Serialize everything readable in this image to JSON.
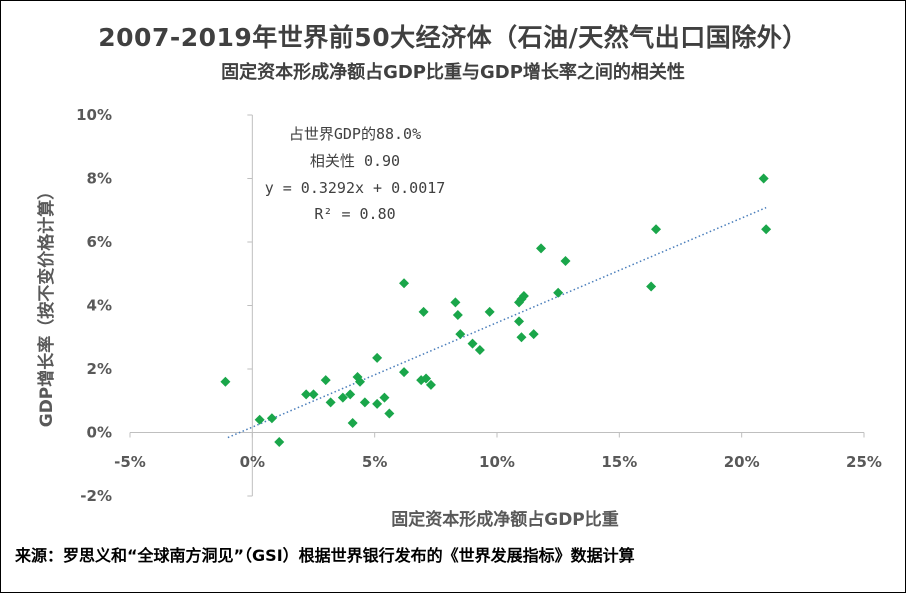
{
  "chart_data": {
    "type": "scatter",
    "title": "2007-2019年世界前50大经济体（石油/天然气出口国除外）",
    "subtitle": "固定资本形成净额占GDP比重与GDP增长率之间的相关性",
    "xlabel": "固定资本形成净额占GDP比重",
    "ylabel": "GDP增长率（按不变价格计算）",
    "xlim": [
      -0.05,
      0.25
    ],
    "ylim": [
      -0.02,
      0.1
    ],
    "xticks": [
      -0.05,
      0,
      0.05,
      0.1,
      0.15,
      0.2,
      0.25
    ],
    "xtick_labels": [
      "-5%",
      "0%",
      "5%",
      "10%",
      "15%",
      "20%",
      "25%"
    ],
    "yticks": [
      -0.02,
      0,
      0.02,
      0.04,
      0.06,
      0.08,
      0.1
    ],
    "ytick_labels": [
      "-2%",
      "0%",
      "2%",
      "4%",
      "6%",
      "8%",
      "10%"
    ],
    "grid": false,
    "marker_color": "#1aa64a",
    "trendline": {
      "slope": 0.3292,
      "intercept": 0.0017,
      "x_range": [
        -0.01,
        0.21
      ],
      "color": "#4a7ebb",
      "style": "dotted"
    },
    "annotations": [
      "占世界GDP的88.0%",
      "相关性 0.90",
      "y = 0.3292x + 0.0017",
      "R² = 0.80"
    ],
    "points": [
      [
        -0.011,
        0.016
      ],
      [
        0.003,
        0.004
      ],
      [
        0.008,
        0.0045
      ],
      [
        0.011,
        -0.003
      ],
      [
        0.022,
        0.012
      ],
      [
        0.025,
        0.012
      ],
      [
        0.03,
        0.0165
      ],
      [
        0.032,
        0.0095
      ],
      [
        0.037,
        0.011
      ],
      [
        0.04,
        0.012
      ],
      [
        0.041,
        0.003
      ],
      [
        0.043,
        0.0175
      ],
      [
        0.044,
        0.016
      ],
      [
        0.046,
        0.0095
      ],
      [
        0.051,
        0.009
      ],
      [
        0.051,
        0.0235
      ],
      [
        0.054,
        0.011
      ],
      [
        0.056,
        0.006
      ],
      [
        0.062,
        0.047
      ],
      [
        0.062,
        0.019
      ],
      [
        0.069,
        0.0165
      ],
      [
        0.07,
        0.038
      ],
      [
        0.071,
        0.017
      ],
      [
        0.073,
        0.015
      ],
      [
        0.083,
        0.041
      ],
      [
        0.084,
        0.037
      ],
      [
        0.085,
        0.031
      ],
      [
        0.09,
        0.028
      ],
      [
        0.093,
        0.026
      ],
      [
        0.097,
        0.038
      ],
      [
        0.109,
        0.035
      ],
      [
        0.109,
        0.041
      ],
      [
        0.11,
        0.042
      ],
      [
        0.111,
        0.043
      ],
      [
        0.11,
        0.03
      ],
      [
        0.115,
        0.031
      ],
      [
        0.118,
        0.058
      ],
      [
        0.125,
        0.044
      ],
      [
        0.128,
        0.054
      ],
      [
        0.163,
        0.046
      ],
      [
        0.165,
        0.064
      ],
      [
        0.209,
        0.08
      ],
      [
        0.21,
        0.064
      ]
    ]
  },
  "source": "来源：罗思义和“全球南方洞见”（GSI）根据世界银行发布的《世界发展指标》数据计算"
}
